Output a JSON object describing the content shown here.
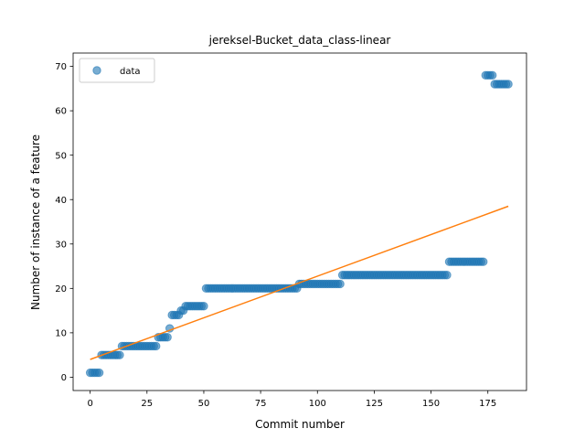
{
  "chart_data": {
    "type": "scatter",
    "title": "jereksel-Bucket_data_class-linear",
    "xlabel": "Commit number",
    "ylabel": "Number of instance of a feature",
    "xlim": [
      -7.5,
      192
    ],
    "ylim": [
      -3,
      73
    ],
    "xticks": [
      0,
      25,
      50,
      75,
      100,
      125,
      150,
      175
    ],
    "yticks": [
      0,
      10,
      20,
      30,
      40,
      50,
      60,
      70
    ],
    "grid": false,
    "legend": {
      "placement": "top-left",
      "entries": [
        "data"
      ]
    },
    "series": [
      {
        "name": "data",
        "kind": "points",
        "color": "#1f77b4",
        "runs": [
          {
            "x_start": 0,
            "x_end": 4,
            "y": 1
          },
          {
            "x_start": 5,
            "x_end": 13,
            "y": 5
          },
          {
            "x_start": 14,
            "x_end": 29,
            "y": 7
          },
          {
            "x_start": 30,
            "x_end": 34,
            "y": 9
          },
          {
            "x_start": 35,
            "x_end": 35,
            "y": 11
          },
          {
            "x_start": 36,
            "x_end": 39,
            "y": 14
          },
          {
            "x_start": 40,
            "x_end": 41,
            "y": 15
          },
          {
            "x_start": 42,
            "x_end": 50,
            "y": 16
          },
          {
            "x_start": 51,
            "x_end": 91,
            "y": 20
          },
          {
            "x_start": 92,
            "x_end": 110,
            "y": 21
          },
          {
            "x_start": 111,
            "x_end": 157,
            "y": 23
          },
          {
            "x_start": 158,
            "x_end": 173,
            "y": 26
          },
          {
            "x_start": 174,
            "x_end": 177,
            "y": 68
          },
          {
            "x_start": 178,
            "x_end": 184,
            "y": 66
          }
        ]
      },
      {
        "name": "",
        "kind": "line",
        "color": "#ff7f0e",
        "x": [
          0,
          184
        ],
        "y": [
          4.0,
          38.5
        ]
      }
    ]
  }
}
